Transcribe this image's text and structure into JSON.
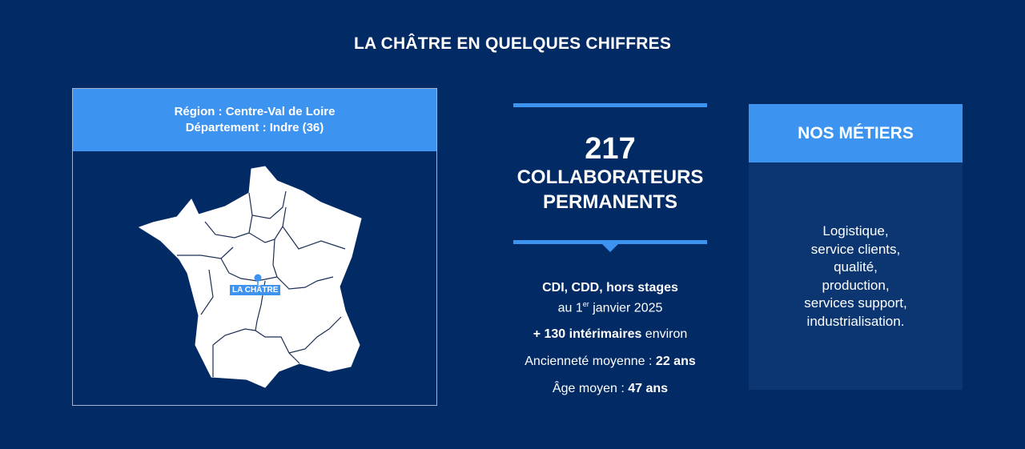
{
  "title": "LA CHÂTRE EN QUELQUES CHIFFRES",
  "map": {
    "region": "Région : Centre-Val de Loire",
    "department": "Département : Indre (36)",
    "pin_label": "LA CHÂTRE",
    "pin_icon": "location-pin-icon"
  },
  "stats": {
    "count": "217",
    "count_label_1": "COLLABORATEURS",
    "count_label_2": "PERMANENTS",
    "contract_types": "CDI, CDD, hors stages",
    "date_prefix": "au 1",
    "date_sup": "er",
    "date_suffix": " janvier 2025",
    "temp_bold": "+ 130 intérimaires",
    "temp_rest": " environ",
    "seniority_label": "Ancienneté moyenne : ",
    "seniority_value": "22 ans",
    "age_label": "Âge moyen : ",
    "age_value": "47 ans"
  },
  "metiers": {
    "heading": "NOS MÉTIERS",
    "items": [
      "Logistique,",
      "service clients,",
      "qualité,",
      "production,",
      "services support,",
      "industrialisation."
    ]
  },
  "colors": {
    "background": "#022a65",
    "accent": "#3d93f0",
    "card": "#0b3672"
  }
}
